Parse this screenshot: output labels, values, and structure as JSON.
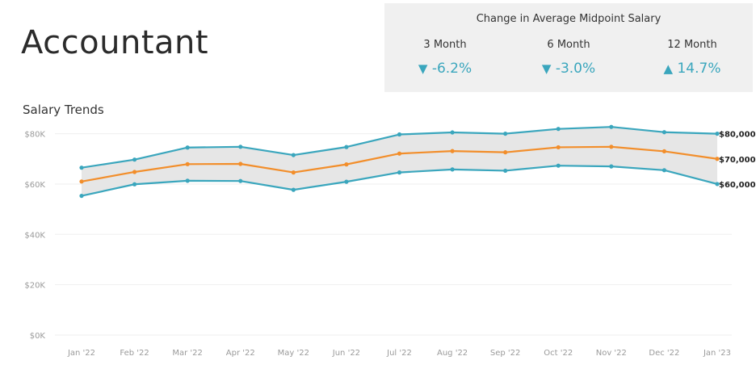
{
  "header": {
    "title": "Accountant"
  },
  "change_panel": {
    "title": "Change in Average Midpoint Salary",
    "periods": [
      {
        "label": "3 Month",
        "value": "-6.2%",
        "direction": "down",
        "arrow": "▼"
      },
      {
        "label": "6 Month",
        "value": "-3.0%",
        "direction": "down",
        "arrow": "▼"
      },
      {
        "label": "12 Month",
        "value": "14.7%",
        "direction": "up",
        "arrow": "▲"
      }
    ]
  },
  "section": {
    "title": "Salary Trends"
  },
  "colors": {
    "upper": "#3aa6bd",
    "lower": "#3aa6bd",
    "mid": "#f28e2b",
    "band": "#e6e6e6",
    "accent": "#3aa6bd"
  },
  "chart_data": {
    "type": "line",
    "categories": [
      "Jan '22",
      "Feb '22",
      "Mar '22",
      "Apr '22",
      "May '22",
      "Jun '22",
      "Jul '22",
      "Aug '22",
      "Sep '22",
      "Oct '22",
      "Nov '22",
      "Dec '22",
      "Jan '23"
    ],
    "series": [
      {
        "key": "upper",
        "values": [
          66500,
          69700,
          74500,
          74800,
          71500,
          74700,
          79700,
          80500,
          80000,
          81900,
          82700,
          80600,
          80000
        ]
      },
      {
        "key": "mid",
        "values": [
          61000,
          64800,
          67900,
          68000,
          64600,
          67800,
          72100,
          73100,
          72600,
          74600,
          74800,
          73000,
          70000
        ]
      },
      {
        "key": "lower",
        "values": [
          55300,
          59900,
          61300,
          61200,
          57700,
          60900,
          64600,
          65800,
          65300,
          67300,
          67000,
          65500,
          60000
        ]
      }
    ],
    "ylim": [
      0,
      85000
    ],
    "yticks": [
      0,
      20000,
      40000,
      60000,
      80000
    ],
    "ytick_labels": [
      "$0K",
      "$20K",
      "$40K",
      "$60K",
      "$80K"
    ],
    "end_labels": [
      "$80,000",
      "$70,000",
      "$60,000"
    ],
    "band_between": [
      "upper",
      "lower"
    ],
    "grid": true,
    "legend": "none"
  }
}
